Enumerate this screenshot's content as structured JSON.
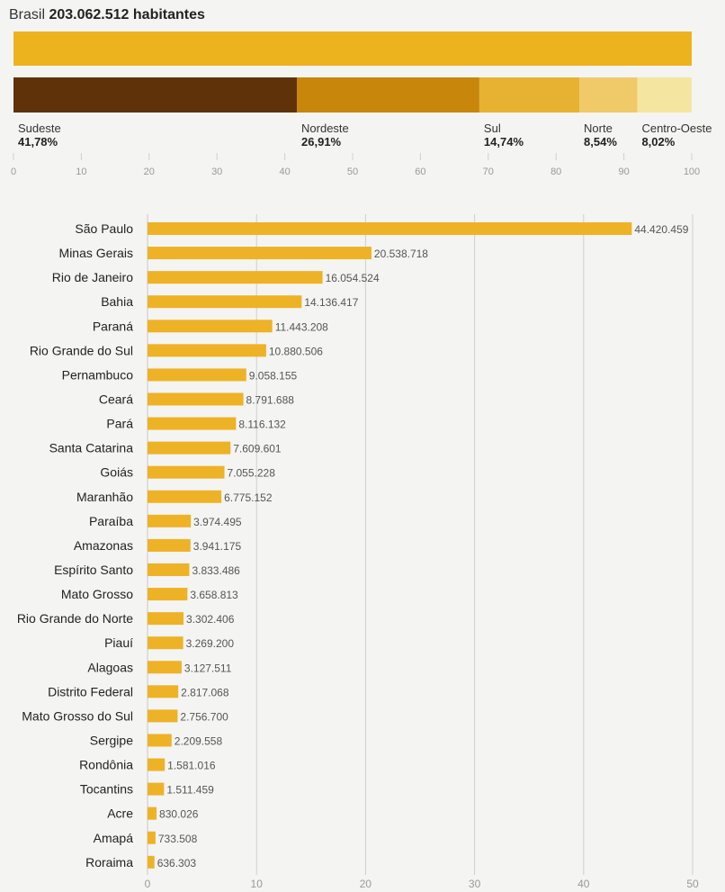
{
  "header": {
    "country": "Brasil",
    "population": "203.062.512",
    "unit": "habitantes"
  },
  "colors": {
    "total_bar": "#edb31e",
    "state_bar": "#eeb226",
    "region_colors": [
      "#5f3209",
      "#c8860a",
      "#e7b232",
      "#f0c969",
      "#f4e6a0"
    ],
    "grid": "#cfcfcf",
    "axis_text": "#999999"
  },
  "chart_data": [
    {
      "type": "bar",
      "orientation": "horizontal-stacked",
      "unit": "%",
      "xlim": [
        0,
        100
      ],
      "xticks": [
        "0",
        "10",
        "20",
        "30",
        "40",
        "50",
        "60",
        "70",
        "80",
        "90",
        "100"
      ],
      "regions": [
        {
          "name": "Sudeste",
          "label": "41,78%",
          "value": 41.78
        },
        {
          "name": "Nordeste",
          "label": "26,91%",
          "value": 26.91
        },
        {
          "name": "Sul",
          "label": "14,74%",
          "value": 14.74
        },
        {
          "name": "Norte",
          "label": "8,54%",
          "value": 8.54
        },
        {
          "name": "Centro-Oeste",
          "label": "8,02%",
          "value": 8.02
        }
      ]
    },
    {
      "type": "bar",
      "orientation": "horizontal",
      "xlim": [
        0,
        50
      ],
      "xticks": [
        "0",
        "10",
        "20",
        "30",
        "40",
        "50"
      ],
      "categories": [
        "São Paulo",
        "Minas Gerais",
        "Rio de Janeiro",
        "Bahia",
        "Paraná",
        "Rio Grande do Sul",
        "Pernambuco",
        "Ceará",
        "Pará",
        "Santa Catarina",
        "Goiás",
        "Maranhão",
        "Paraíba",
        "Amazonas",
        "Espírito Santo",
        "Mato Grosso",
        "Rio Grande do Norte",
        "Piauí",
        "Alagoas",
        "Distrito Federal",
        "Mato Grosso do Sul",
        "Sergipe",
        "Rondônia",
        "Tocantins",
        "Acre",
        "Amapá",
        "Roraima"
      ],
      "values": [
        44420459,
        20538718,
        16054524,
        14136417,
        11443208,
        10880506,
        9058155,
        8791688,
        8116132,
        7609601,
        7055228,
        6775152,
        3974495,
        3941175,
        3833486,
        3658813,
        3302406,
        3269200,
        3127511,
        2817068,
        2756700,
        2209558,
        1581016,
        1511459,
        830026,
        733508,
        636303
      ],
      "labels": [
        "44.420.459",
        "20.538.718",
        "16.054.524",
        "14.136.417",
        "11.443.208",
        "10.880.506",
        "9.058.155",
        "8.791.688",
        "8.116.132",
        "7.609.601",
        "7.055.228",
        "6.775.152",
        "3.974.495",
        "3.941.175",
        "3.833.486",
        "3.658.813",
        "3.302.406",
        "3.269.200",
        "3.127.511",
        "2.817.068",
        "2.756.700",
        "2.209.558",
        "1.581.016",
        "1.511.459",
        "830.026",
        "733.508",
        "636.303"
      ]
    }
  ]
}
